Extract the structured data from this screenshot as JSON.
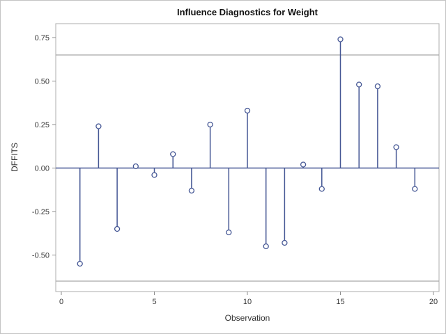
{
  "window": {
    "background": "#ffffff",
    "border_color": "#c3c3c3"
  },
  "chart_data": {
    "type": "scatter",
    "variant": "needle-stem",
    "title": "Influence Diagnostics for Weight",
    "xlabel": "Observation",
    "ylabel": "DFFITS",
    "x": [
      1,
      2,
      3,
      4,
      5,
      6,
      7,
      8,
      9,
      10,
      11,
      12,
      13,
      14,
      15,
      16,
      17,
      18,
      19
    ],
    "y": [
      -0.55,
      0.24,
      -0.35,
      0.01,
      -0.04,
      0.08,
      -0.13,
      0.25,
      -0.37,
      0.33,
      -0.45,
      -0.43,
      0.02,
      -0.12,
      0.74,
      0.48,
      0.47,
      0.12,
      -0.12
    ],
    "baseline": 0,
    "reference_lines": [
      0.65,
      -0.65
    ],
    "xlim": [
      -0.3,
      20.3
    ],
    "ylim": [
      -0.71,
      0.83
    ],
    "x_ticks": [
      0,
      5,
      10,
      15,
      20
    ],
    "x_tick_labels": [
      "0",
      "5",
      "10",
      "15",
      "20"
    ],
    "y_ticks": [
      0.75,
      0.5,
      0.25,
      0,
      -0.25,
      -0.5
    ],
    "y_tick_labels": [
      "0.75",
      "0.50",
      "0.25",
      "0.00",
      "-0.25",
      "-0.50"
    ],
    "grid": false,
    "legend": null,
    "marker": "open-circle",
    "colors": {
      "stem": "#445694",
      "marker_stroke": "#445694",
      "marker_fill": "#ffffff",
      "zero_line": "#445694",
      "reference_line": "#a8a8a8",
      "frame": "#adadad",
      "tick": "#8e8e8e",
      "tick_text": "#333333",
      "title_text": "#111111"
    }
  }
}
